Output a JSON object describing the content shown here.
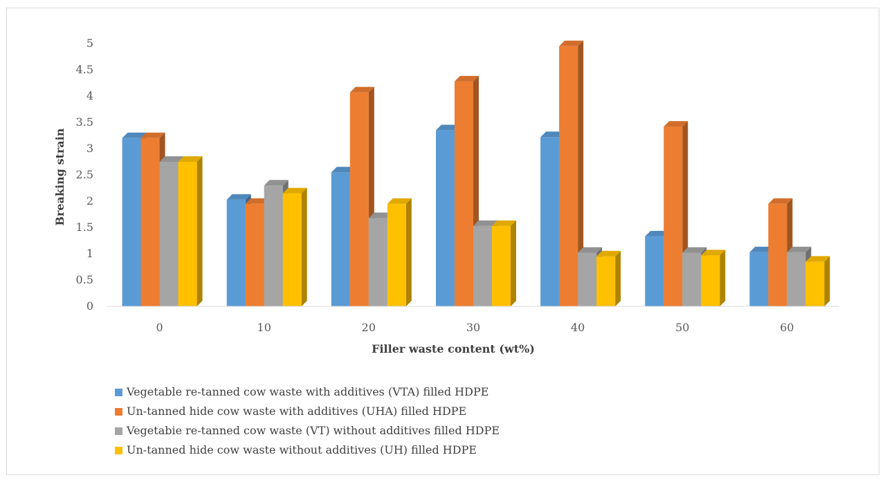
{
  "chart_data": {
    "type": "bar",
    "title": "",
    "xlabel": "Filler waste content (wt%)",
    "ylabel": "Breaking strain",
    "ylim": [
      0,
      5
    ],
    "yticks": [
      "0",
      "0.5",
      "1",
      "1.5",
      "2",
      "2.5",
      "3",
      "3.5",
      "4",
      "4.5",
      "5"
    ],
    "categories": [
      "0",
      "10",
      "20",
      "30",
      "40",
      "50",
      "60"
    ],
    "grid": false,
    "legend_position": "bottom-left",
    "series": [
      {
        "name": "Vegetable re-tanned cow waste with additives (VTA) filled HDPE",
        "color": "#5b9bd5",
        "values": [
          3.2,
          2.03,
          2.55,
          3.35,
          3.22,
          1.33,
          1.03
        ]
      },
      {
        "name": "Un-tanned hide cow waste with additives (UHA) filled HDPE",
        "color": "#ed7d31",
        "values": [
          3.2,
          1.95,
          4.07,
          4.28,
          4.95,
          3.42,
          1.95
        ]
      },
      {
        "name": "Vegetabie re-tanned cow waste (VT) without additives filled HDPE",
        "color": "#a5a5a5",
        "values": [
          2.75,
          2.3,
          1.68,
          1.53,
          1.02,
          1.02,
          1.03
        ]
      },
      {
        "name": "Un-tanned hide cow waste without additives (UH) filled HDPE",
        "color": "#ffc000",
        "values": [
          2.75,
          2.15,
          1.95,
          1.53,
          0.95,
          0.97,
          0.85
        ]
      }
    ]
  }
}
